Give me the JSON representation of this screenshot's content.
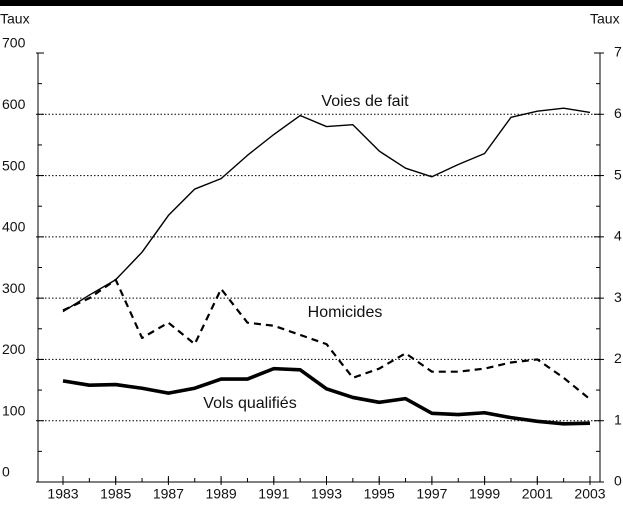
{
  "chart_data": {
    "type": "line",
    "ylabel": "Taux",
    "y2label": "Taux",
    "x": [
      1983,
      1984,
      1985,
      1986,
      1987,
      1988,
      1989,
      1990,
      1991,
      1992,
      1993,
      1994,
      1995,
      1996,
      1997,
      1998,
      1999,
      2000,
      2001,
      2002,
      2003
    ],
    "xlim": [
      1983,
      2003
    ],
    "xticks": [
      1983,
      1985,
      1987,
      1989,
      1991,
      1993,
      1995,
      1997,
      1999,
      2001,
      2003
    ],
    "ylim": [
      0,
      700
    ],
    "yticks": [
      0,
      100,
      200,
      300,
      400,
      500,
      600,
      700
    ],
    "y2lim": [
      0,
      7
    ],
    "y2ticks": [
      0,
      1,
      2,
      3,
      4,
      5,
      6,
      7
    ],
    "grid": true,
    "series": [
      {
        "name": "Voies de fait",
        "color": "#000000",
        "line_style": "solid",
        "axis": "y",
        "values": [
          278,
          305,
          330,
          375,
          435,
          478,
          495,
          533,
          567,
          598,
          580,
          583,
          540,
          512,
          498,
          518,
          536,
          595,
          605,
          610,
          603
        ]
      },
      {
        "name": "Homicides",
        "color": "#000000",
        "line_style": "dashed",
        "axis": "y2",
        "values": [
          2.8,
          3.0,
          3.3,
          2.35,
          2.6,
          2.25,
          3.15,
          2.6,
          2.55,
          2.4,
          2.25,
          1.7,
          1.85,
          2.1,
          1.8,
          1.8,
          1.85,
          1.95,
          2.0,
          1.7,
          1.35
        ]
      },
      {
        "name": "Vols qualifiés",
        "color": "#000000",
        "line_style": "bold",
        "axis": "y",
        "values": [
          165,
          158,
          159,
          153,
          145,
          153,
          168,
          168,
          185,
          183,
          152,
          138,
          130,
          136,
          112,
          110,
          113,
          105,
          99,
          95,
          96
        ]
      }
    ]
  }
}
